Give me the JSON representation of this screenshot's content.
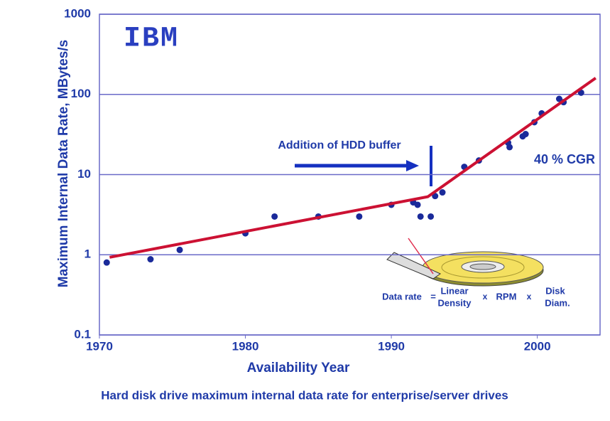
{
  "chart_data": {
    "type": "scatter",
    "title": "Hard disk drive maximum internal data rate for enterprise/server drives",
    "x_label": "Availability Year",
    "y_label": "Maximum Internal Data Rate, MBytes/s",
    "yscale": "log",
    "grid": true,
    "color": "#1a2a9a",
    "xlim": [
      1970,
      2004.3
    ],
    "ylim": [
      0.1,
      1000
    ],
    "xticks": [
      1970,
      1980,
      1990,
      2000
    ],
    "yticks": [
      0.1,
      1,
      10,
      100,
      1000
    ],
    "x": [
      1970.5,
      1973.5,
      1975.5,
      1980,
      1982,
      1985,
      1987.8,
      1990,
      1991.5,
      1991.8,
      1992,
      1992.7,
      1993,
      1993.5,
      1995,
      1996,
      1998,
      1998.1,
      1999,
      1999.2,
      1999.8,
      2000.3,
      2001.5,
      2001.8,
      2003
    ],
    "values": [
      0.8,
      0.88,
      1.15,
      1.85,
      3,
      3,
      3,
      4.2,
      4.5,
      4.2,
      3,
      3,
      5.4,
      6,
      12.5,
      15,
      25,
      22,
      30,
      32,
      45,
      58,
      88,
      80,
      105
    ],
    "trend": {
      "color": "#cc1133",
      "x": [
        1970.7,
        1992.5,
        2004
      ],
      "values": [
        0.93,
        5.3,
        160
      ]
    },
    "annotations": {
      "logo": "IBM",
      "buffer": "Addition of HDD buffer",
      "cgr": "40 % CGR",
      "formula": [
        "Data rate",
        "=",
        "Linear",
        "Density",
        "x",
        "RPM",
        "x",
        "Disk",
        "Diam."
      ]
    }
  }
}
